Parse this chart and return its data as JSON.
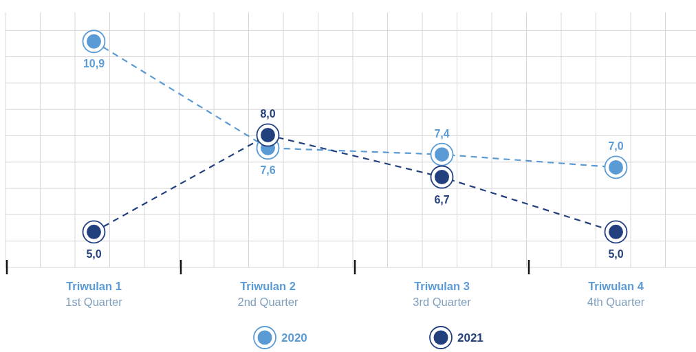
{
  "chart_data": {
    "type": "line",
    "categories": [
      "Triwulan 1\n1st Quarter",
      "Triwulan 2\n2nd Quarter",
      "Triwulan 3\n3rd Quarter",
      "Triwulan 4\n4th Quarter"
    ],
    "series": [
      {
        "name": "2020",
        "color": "#5b9bd5",
        "values": [
          10.9,
          7.6,
          7.4,
          7.0
        ],
        "value_labels": [
          "10,9",
          "7,6",
          "7,4",
          "7,0"
        ]
      },
      {
        "name": "2021",
        "color": "#23407e",
        "values": [
          5.0,
          8.0,
          6.7,
          5.0
        ],
        "value_labels": [
          "5,0",
          "8,0",
          "6,7",
          "5,0"
        ]
      }
    ],
    "ylim": [
      3.9,
      11.8
    ],
    "grid": true,
    "legend": "bottom",
    "marker": "circle",
    "line_style": "dashed",
    "tick_labels": "x"
  }
}
